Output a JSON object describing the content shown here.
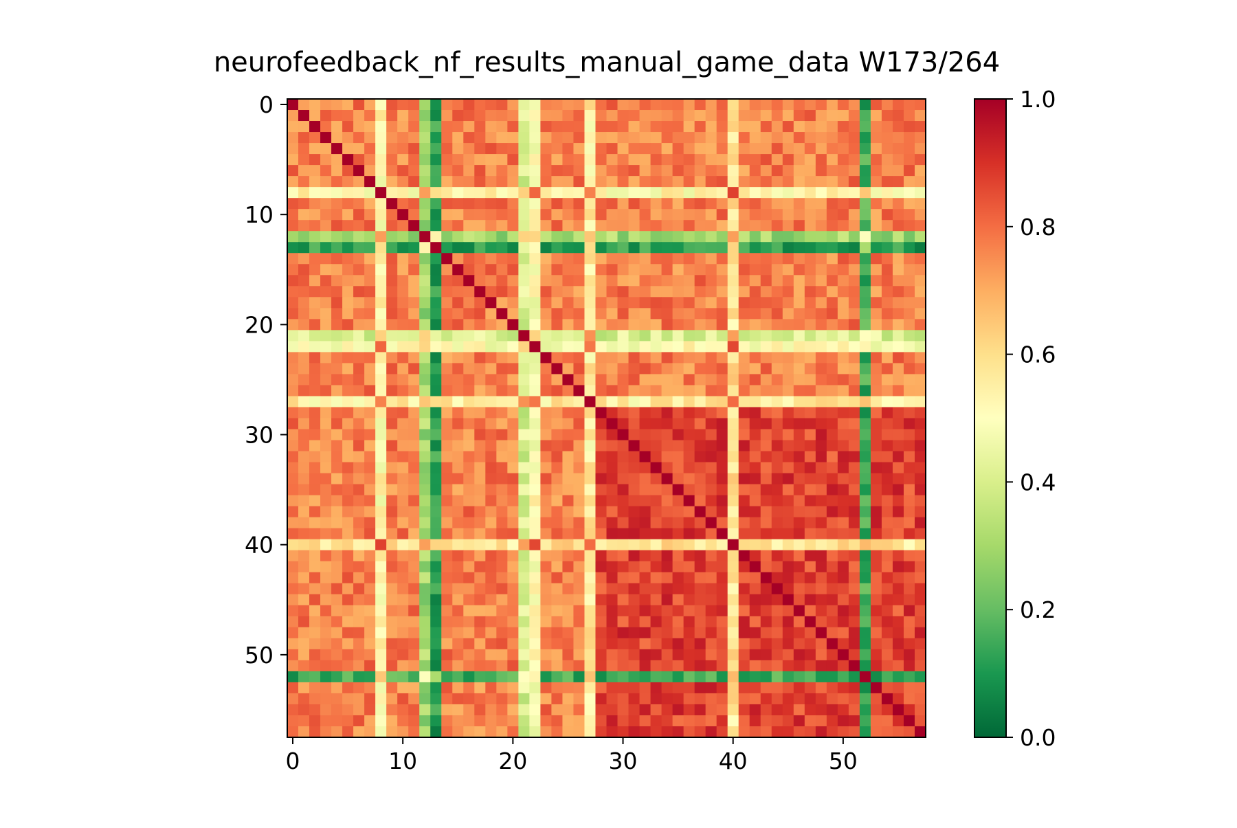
{
  "chart_data": {
    "type": "heatmap",
    "title": "neurofeedback_nf_results_manual_game_data W173/264",
    "n": 58,
    "colormap": "RdYlGn_r",
    "vmin": 0.0,
    "vmax": 1.0,
    "xlim": [
      -0.5,
      57.5
    ],
    "ylim": [
      57.5,
      -0.5
    ],
    "x_ticks": [
      0,
      10,
      20,
      30,
      40,
      50
    ],
    "y_ticks": [
      0,
      10,
      20,
      30,
      40,
      50
    ],
    "colorbar_ticks": [
      0.0,
      0.2,
      0.4,
      0.6,
      0.8,
      1.0
    ],
    "colorbar_tick_labels": [
      "0.0",
      "0.2",
      "0.4",
      "0.6",
      "0.8",
      "1.0"
    ],
    "diagonal_value": 1.0,
    "default_offdiag_value": 0.77,
    "low_correlation_channels": [
      {
        "index": 12,
        "value": 0.3
      },
      {
        "index": 13,
        "value": 0.12
      },
      {
        "index": 52,
        "value": 0.15
      }
    ],
    "moderate_correlation_channels": [
      {
        "index": 8,
        "value": 0.52
      },
      {
        "index": 21,
        "value": 0.4
      },
      {
        "index": 22,
        "value": 0.5
      },
      {
        "index": 27,
        "value": 0.55
      },
      {
        "index": 40,
        "value": 0.58
      }
    ],
    "high_correlation_block": {
      "start": 28,
      "end": 57,
      "value": 0.87
    },
    "noise_amplitude": 0.08
  }
}
